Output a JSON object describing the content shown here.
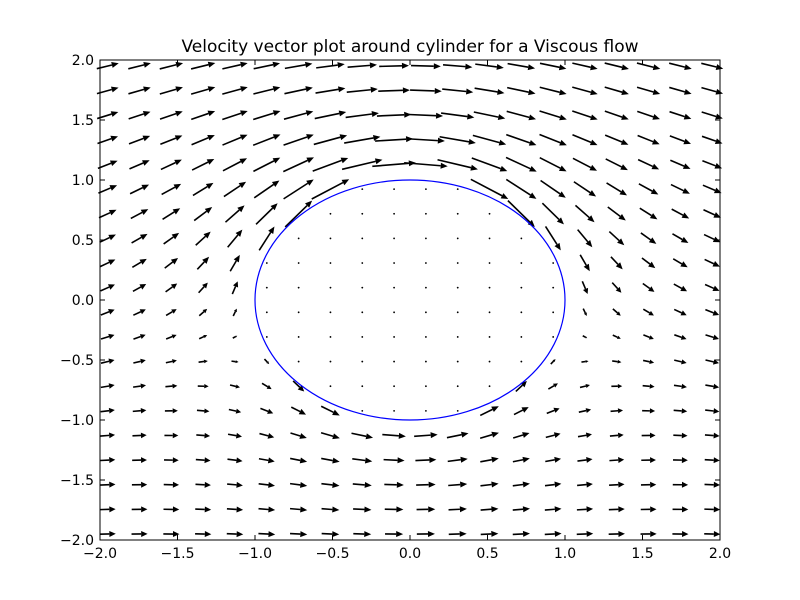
{
  "chart_data": {
    "type": "quiver",
    "title": "Velocity vector plot around cylinder for a Viscous flow",
    "xlabel": "",
    "ylabel": "",
    "xlim": [
      -2.0,
      2.0
    ],
    "ylim": [
      -2.0,
      2.0
    ],
    "x_ticks": [
      -2.0,
      -1.5,
      -1.0,
      -0.5,
      0.0,
      0.5,
      1.0,
      1.5,
      2.0
    ],
    "y_ticks": [
      -2.0,
      -1.5,
      -1.0,
      -0.5,
      0.0,
      0.5,
      1.0,
      1.5,
      2.0
    ],
    "x_tick_labels": [
      "−2.0",
      "−1.5",
      "−1.0",
      "−0.5",
      "0.0",
      "0.5",
      "1.0",
      "1.5",
      "2.0"
    ],
    "y_tick_labels": [
      "−2.0",
      "−1.5",
      "−1.0",
      "−0.5",
      "0.0",
      "0.5",
      "1.0",
      "1.5",
      "2.0"
    ],
    "grid": false,
    "vector_field": {
      "x_start": -1.95,
      "x_end": 1.95,
      "nx": 20,
      "y_start": -1.95,
      "y_end": 1.95,
      "ny": 20,
      "free_stream_speed": 1.0,
      "vortex_strength": 0.6,
      "model": "potential flow around cylinder with circulation; near-zero velocity inside cylinder"
    },
    "cylinder": {
      "center": [
        0.0,
        0.0
      ],
      "radius": 1.0,
      "color": "#0000ff"
    },
    "arrow_color": "#000000"
  }
}
